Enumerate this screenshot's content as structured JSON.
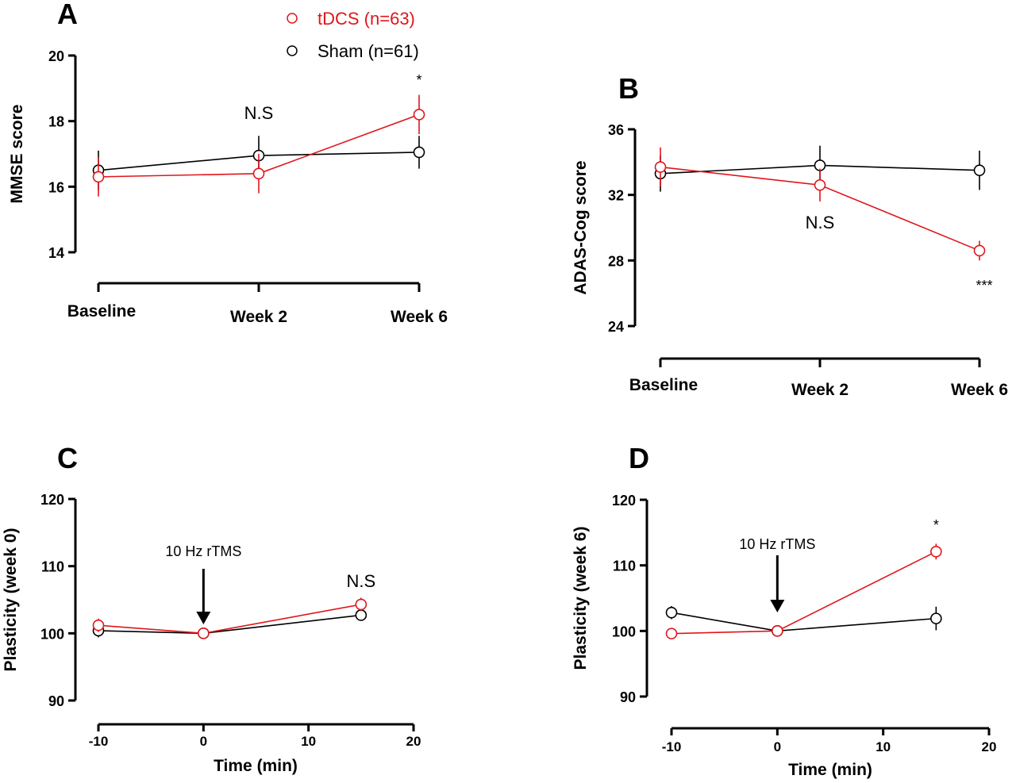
{
  "legend": {
    "placement": "top-center",
    "items": [
      {
        "label": "tDCS (n=63)",
        "color": "#e0161b"
      },
      {
        "label": "Sham (n=61)",
        "color": "#000000"
      }
    ]
  },
  "chart_data": [
    {
      "panel": "A",
      "type": "line",
      "ylabel": "MMSE score",
      "xlabel": "",
      "categories": [
        "Baseline",
        "Week 2",
        "Week 6"
      ],
      "ylim": [
        14,
        20
      ],
      "yticks": [
        14,
        16,
        18,
        20
      ],
      "grid": false,
      "series": [
        {
          "name": "tDCS (n=63)",
          "color": "#e0161b",
          "values": [
            16.3,
            16.4,
            18.2
          ],
          "errors": [
            0.6,
            0.6,
            0.6
          ]
        },
        {
          "name": "Sham (n=61)",
          "color": "#000000",
          "values": [
            16.5,
            16.95,
            17.05
          ],
          "errors": [
            0.6,
            0.6,
            0.5
          ]
        }
      ],
      "annotations": [
        {
          "text": "N.S",
          "at": "Week 2"
        },
        {
          "text": "*",
          "at": "Week 6"
        }
      ]
    },
    {
      "panel": "B",
      "type": "line",
      "ylabel": "ADAS-Cog score",
      "xlabel": "",
      "categories": [
        "Baseline",
        "Week 2",
        "Week 6"
      ],
      "ylim": [
        24,
        36
      ],
      "yticks": [
        24,
        28,
        32,
        36
      ],
      "grid": false,
      "series": [
        {
          "name": "tDCS (n=63)",
          "color": "#e0161b",
          "values": [
            33.7,
            32.6,
            28.6
          ],
          "errors": [
            1.2,
            1.0,
            0.6
          ]
        },
        {
          "name": "Sham (n=61)",
          "color": "#000000",
          "values": [
            33.3,
            33.8,
            33.5
          ],
          "errors": [
            1.1,
            1.2,
            1.2
          ]
        }
      ],
      "annotations": [
        {
          "text": "N.S",
          "at": "Week 2"
        },
        {
          "text": "***",
          "at": "Week 6"
        }
      ]
    },
    {
      "panel": "C",
      "type": "line",
      "ylabel": "Plasticity (week 0)",
      "xlabel": "Time (min)",
      "xlim": [
        -10,
        20
      ],
      "xticks": [
        -10,
        0,
        10,
        20
      ],
      "ylim": [
        90,
        120
      ],
      "yticks": [
        90,
        100,
        110,
        120
      ],
      "grid": false,
      "series": [
        {
          "name": "tDCS (n=63)",
          "color": "#e0161b",
          "x": [
            -10,
            0,
            15
          ],
          "values": [
            101.2,
            100,
            104.3
          ],
          "errors": [
            1.0,
            0,
            1.0
          ]
        },
        {
          "name": "Sham (n=61)",
          "color": "#000000",
          "x": [
            -10,
            0,
            15
          ],
          "values": [
            100.4,
            100,
            102.7
          ],
          "errors": [
            1.0,
            0,
            0.8
          ]
        }
      ],
      "annotations": [
        {
          "text": "10 Hz rTMS",
          "at": 0,
          "arrow": true
        },
        {
          "text": "N.S",
          "at": 15
        }
      ]
    },
    {
      "panel": "D",
      "type": "line",
      "ylabel": "Plasticity (week 6)",
      "xlabel": "Time (min)",
      "xlim": [
        -10,
        20
      ],
      "xticks": [
        -10,
        0,
        10,
        20
      ],
      "ylim": [
        90,
        120
      ],
      "yticks": [
        90,
        100,
        110,
        120
      ],
      "grid": false,
      "series": [
        {
          "name": "tDCS (n=63)",
          "color": "#e0161b",
          "x": [
            -10,
            0,
            15
          ],
          "values": [
            99.6,
            100,
            112.1
          ],
          "errors": [
            0.8,
            0,
            1.2
          ]
        },
        {
          "name": "Sham (n=61)",
          "color": "#000000",
          "x": [
            -10,
            0,
            15
          ],
          "values": [
            102.8,
            100,
            101.9
          ],
          "errors": [
            1.0,
            0,
            1.8
          ]
        }
      ],
      "annotations": [
        {
          "text": "10 Hz rTMS",
          "at": 0,
          "arrow": true
        },
        {
          "text": "*",
          "at": 15
        }
      ]
    }
  ]
}
